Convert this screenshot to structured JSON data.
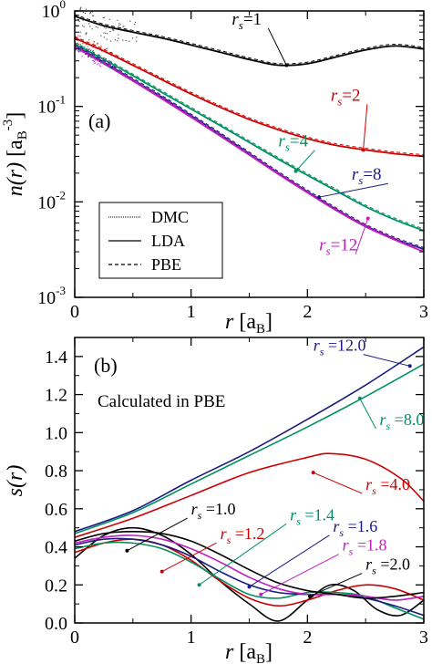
{
  "panels": [
    {
      "panel_label": "(a)",
      "ylabel_html": "n(r)  [a_B^-3]",
      "xlabel": "r  [a_B]",
      "ytick_labels": [
        "10^-3",
        "10^-2",
        "10^-1",
        "10^0"
      ],
      "xtick_labels": [
        "0",
        "1",
        "2",
        "3"
      ],
      "legend": [
        "DMC",
        "LDA",
        "PBE"
      ]
    },
    {
      "panel_label": "(b)",
      "ylabel_html": "s(r)",
      "xlabel": "r  [a_B]",
      "note": "Calculated in PBE",
      "ytick_labels": [
        "0.0",
        "0.2",
        "0.4",
        "0.6",
        "0.8",
        "1.0",
        "1.2",
        "1.4"
      ],
      "xtick_labels": [
        "0",
        "1",
        "2",
        "3"
      ]
    }
  ],
  "chart_data": [
    {
      "type": "line",
      "panel": "(a)",
      "x_label": "r [a_B]",
      "y_label": "n(r) [a_B^-3]",
      "y_scale": "log",
      "xlim": [
        0,
        3
      ],
      "ylim": [
        0.001,
        1
      ],
      "legend": [
        "DMC",
        "LDA",
        "PBE"
      ],
      "legend_placement": "lower-left",
      "series": [
        {
          "name": "rs=1",
          "color": "#000000",
          "x": [
            0,
            0.25,
            0.5,
            0.75,
            1.0,
            1.25,
            1.5,
            1.75,
            2.0,
            2.25,
            2.5,
            2.75,
            3.0
          ],
          "y": [
            0.88,
            0.7,
            0.6,
            0.52,
            0.44,
            0.37,
            0.31,
            0.27,
            0.28,
            0.33,
            0.39,
            0.43,
            0.4
          ]
        },
        {
          "name": "rs=2",
          "color": "#cc0000",
          "x": [
            0,
            0.25,
            0.5,
            0.75,
            1.0,
            1.25,
            1.5,
            1.75,
            2.0,
            2.25,
            2.5,
            2.75,
            3.0
          ],
          "y": [
            0.52,
            0.38,
            0.27,
            0.19,
            0.135,
            0.098,
            0.073,
            0.057,
            0.046,
            0.039,
            0.035,
            0.032,
            0.03
          ]
        },
        {
          "name": "rs=4",
          "color": "#009060",
          "x": [
            0,
            0.25,
            0.5,
            0.75,
            1.0,
            1.25,
            1.5,
            1.75,
            2.0,
            2.25,
            2.5,
            2.75,
            3.0
          ],
          "y": [
            0.45,
            0.31,
            0.21,
            0.14,
            0.094,
            0.063,
            0.042,
            0.028,
            0.019,
            0.013,
            0.0089,
            0.0065,
            0.005
          ]
        },
        {
          "name": "rs=8",
          "color": "#1a1a80",
          "x": [
            0,
            0.25,
            0.5,
            0.75,
            1.0,
            1.25,
            1.5,
            1.75,
            2.0,
            2.25,
            2.5,
            2.75,
            3.0
          ],
          "y": [
            0.43,
            0.29,
            0.19,
            0.125,
            0.08,
            0.051,
            0.032,
            0.02,
            0.0128,
            0.0083,
            0.0056,
            0.0041,
            0.0032
          ]
        },
        {
          "name": "rs=12",
          "color": "#c020c0",
          "x": [
            0,
            0.25,
            0.5,
            0.75,
            1.0,
            1.25,
            1.5,
            1.75,
            2.0,
            2.25,
            2.5,
            2.75,
            3.0
          ],
          "y": [
            0.42,
            0.28,
            0.185,
            0.12,
            0.077,
            0.049,
            0.031,
            0.0195,
            0.0125,
            0.0081,
            0.0055,
            0.004,
            0.003
          ]
        }
      ],
      "labels": [
        {
          "rs": "1",
          "color": "#000000",
          "x": 1.35,
          "y": 0.72,
          "point_x": 1.82,
          "point_y": 0.27
        },
        {
          "rs": "2",
          "color": "#cc0000",
          "x": 2.2,
          "y": 0.115,
          "point_x": 2.48,
          "point_y": 0.035
        },
        {
          "rs": "4",
          "color": "#009060",
          "x": 1.75,
          "y": 0.038,
          "point_x": 1.9,
          "point_y": 0.021
        },
        {
          "rs": "8",
          "color": "#1a1a80",
          "x": 2.38,
          "y": 0.017,
          "point_x": 2.1,
          "point_y": 0.0112
        },
        {
          "rs": "12",
          "color": "#c020c0",
          "x": 2.1,
          "y": 0.0031,
          "point_x": 2.52,
          "point_y": 0.0067
        }
      ]
    },
    {
      "type": "line",
      "panel": "(b)",
      "x_label": "r [a_B]",
      "y_label": "s(r)",
      "xlim": [
        0,
        3
      ],
      "ylim": [
        0,
        1.5
      ],
      "series": [
        {
          "name": "rs=12.0",
          "color": "#1a1a80",
          "x": [
            0,
            0.5,
            1.0,
            1.5,
            2.0,
            2.5,
            3.0
          ],
          "y": [
            0.48,
            0.59,
            0.75,
            0.9,
            1.07,
            1.25,
            1.45
          ]
        },
        {
          "name": "rs=8.0",
          "color": "#009060",
          "x": [
            0,
            0.5,
            1.0,
            1.5,
            2.0,
            2.5,
            3.0
          ],
          "y": [
            0.47,
            0.58,
            0.73,
            0.88,
            1.03,
            1.19,
            1.36
          ]
        },
        {
          "name": "rs=4.0",
          "color": "#cc0000",
          "x": [
            0,
            0.5,
            1.0,
            1.5,
            2.0,
            2.2,
            2.5,
            2.8,
            3.0
          ],
          "y": [
            0.45,
            0.55,
            0.67,
            0.79,
            0.87,
            0.89,
            0.86,
            0.76,
            0.64
          ]
        },
        {
          "name": "rs=1.0",
          "color": "#000000",
          "x": [
            0,
            0.25,
            0.5,
            0.75,
            1.0,
            1.25,
            1.5,
            1.75,
            2.0,
            2.2,
            2.4,
            2.6,
            2.8,
            3.0
          ],
          "y": [
            0.34,
            0.46,
            0.5,
            0.46,
            0.36,
            0.22,
            0.1,
            0.01,
            0.12,
            0.2,
            0.17,
            0.07,
            0.04,
            0.12
          ]
        },
        {
          "name": "rs=1.2",
          "color": "#cc0000",
          "x": [
            0,
            0.25,
            0.5,
            0.75,
            1.0,
            1.25,
            1.5,
            1.75,
            2.0,
            2.25,
            2.5,
            2.75,
            3.0
          ],
          "y": [
            0.37,
            0.42,
            0.44,
            0.41,
            0.33,
            0.22,
            0.13,
            0.09,
            0.12,
            0.17,
            0.2,
            0.18,
            0.12
          ]
        },
        {
          "name": "rs=1.4",
          "color": "#009060",
          "x": [
            0,
            0.25,
            0.5,
            0.75,
            1.0,
            1.25,
            1.5,
            1.75,
            2.0,
            2.25,
            2.5,
            2.75,
            3.0
          ],
          "y": [
            0.39,
            0.42,
            0.42,
            0.39,
            0.32,
            0.23,
            0.15,
            0.13,
            0.16,
            0.16,
            0.14,
            0.08,
            0.02
          ]
        },
        {
          "name": "rs=1.6",
          "color": "#1a1a80",
          "x": [
            0,
            0.25,
            0.5,
            0.75,
            1.0,
            1.25,
            1.5,
            1.75,
            2.0,
            2.25,
            2.5,
            2.75,
            3.0
          ],
          "y": [
            0.41,
            0.44,
            0.44,
            0.41,
            0.35,
            0.27,
            0.2,
            0.16,
            0.15,
            0.15,
            0.13,
            0.09,
            0.04
          ]
        },
        {
          "name": "rs=1.8",
          "color": "#c020c0",
          "x": [
            0,
            0.25,
            0.5,
            0.75,
            1.0,
            1.25,
            1.5,
            1.75,
            2.0,
            2.25,
            2.5,
            2.75,
            3.0
          ],
          "y": [
            0.42,
            0.45,
            0.46,
            0.44,
            0.39,
            0.32,
            0.24,
            0.18,
            0.15,
            0.15,
            0.14,
            0.12,
            0.14
          ]
        },
        {
          "name": "rs=2.0",
          "color": "#000000",
          "x": [
            0,
            0.25,
            0.5,
            0.75,
            1.0,
            1.25,
            1.5,
            1.75,
            2.0,
            2.25,
            2.5,
            2.75,
            3.0
          ],
          "y": [
            0.43,
            0.47,
            0.48,
            0.47,
            0.43,
            0.36,
            0.28,
            0.21,
            0.17,
            0.15,
            0.13,
            0.14,
            0.16
          ]
        }
      ],
      "labels": [
        {
          "rs": "12.0",
          "color": "#1a1a80",
          "x": 2.05,
          "y": 1.43,
          "point_x": 2.88,
          "point_y": 1.35
        },
        {
          "rs": "8.0",
          "color": "#009060",
          "x": 2.62,
          "y": 1.04,
          "point_x": 2.45,
          "point_y": 1.18
        },
        {
          "rs": "4.0",
          "color": "#cc0000",
          "x": 2.5,
          "y": 0.7,
          "point_x": 2.05,
          "point_y": 0.79
        },
        {
          "rs": "1.0",
          "color": "#000000",
          "x": 1.0,
          "y": 0.57,
          "point_x": 0.45,
          "point_y": 0.38
        },
        {
          "rs": "1.2",
          "color": "#cc0000",
          "x": 1.25,
          "y": 0.44,
          "point_x": 0.75,
          "point_y": 0.27
        },
        {
          "rs": "1.4",
          "color": "#009060",
          "x": 1.85,
          "y": 0.54,
          "point_x": 1.07,
          "point_y": 0.2
        },
        {
          "rs": "1.6",
          "color": "#1a1a80",
          "x": 2.22,
          "y": 0.48,
          "point_x": 1.5,
          "point_y": 0.19
        },
        {
          "rs": "1.8",
          "color": "#c020c0",
          "x": 2.3,
          "y": 0.38,
          "point_x": 1.6,
          "point_y": 0.15
        },
        {
          "rs": "2.0",
          "color": "#000000",
          "x": 2.5,
          "y": 0.28,
          "point_x": 2.02,
          "point_y": 0.14
        }
      ]
    }
  ]
}
